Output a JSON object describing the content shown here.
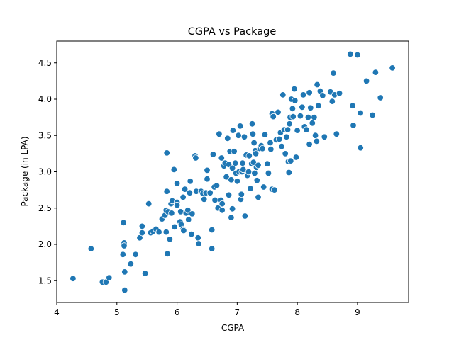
{
  "chart_data": {
    "type": "scatter",
    "title": "CGPA vs Package",
    "xlabel": "CGPA",
    "ylabel": "Package (in LPA)",
    "xlim": [
      4.0,
      9.85
    ],
    "ylim": [
      1.2,
      4.8
    ],
    "xticks": [
      4,
      5,
      6,
      7,
      8,
      9
    ],
    "yticks": [
      1.5,
      2.0,
      2.5,
      3.0,
      3.5,
      4.0,
      4.5
    ],
    "xtick_labels": [
      "4",
      "5",
      "6",
      "7",
      "8",
      "9"
    ],
    "ytick_labels": [
      "1.5",
      "2.0",
      "2.5",
      "3.0",
      "3.5",
      "4.0",
      "4.5"
    ],
    "grid": false,
    "marker_color": "#1f77b4",
    "marker_edge": "#ffffff",
    "points": [
      [
        4.27,
        1.53
      ],
      [
        4.57,
        1.94
      ],
      [
        4.76,
        1.48
      ],
      [
        4.82,
        1.48
      ],
      [
        4.87,
        1.54
      ],
      [
        5.1,
        1.86
      ],
      [
        5.11,
        2.3
      ],
      [
        5.12,
        2.02
      ],
      [
        5.12,
        1.98
      ],
      [
        5.13,
        1.62
      ],
      [
        5.13,
        1.37
      ],
      [
        5.23,
        1.73
      ],
      [
        5.31,
        1.86
      ],
      [
        5.38,
        2.09
      ],
      [
        5.42,
        2.25
      ],
      [
        5.42,
        2.16
      ],
      [
        5.47,
        1.6
      ],
      [
        5.53,
        2.56
      ],
      [
        5.56,
        2.16
      ],
      [
        5.6,
        2.18
      ],
      [
        5.65,
        2.21
      ],
      [
        5.7,
        2.17
      ],
      [
        5.75,
        2.35
      ],
      [
        5.8,
        2.4
      ],
      [
        5.82,
        2.47
      ],
      [
        5.83,
        2.73
      ],
      [
        5.82,
        2.17
      ],
      [
        5.85,
        2.45
      ],
      [
        5.84,
        1.87
      ],
      [
        5.83,
        3.26
      ],
      [
        5.88,
        2.07
      ],
      [
        5.9,
        2.56
      ],
      [
        5.91,
        2.43
      ],
      [
        5.92,
        2.6
      ],
      [
        5.95,
        3.03
      ],
      [
        5.96,
        2.24
      ],
      [
        6.0,
        2.58
      ],
      [
        6.0,
        2.54
      ],
      [
        6.0,
        2.84
      ],
      [
        6.05,
        2.31
      ],
      [
        6.06,
        2.45
      ],
      [
        6.07,
        2.27
      ],
      [
        6.1,
        2.21
      ],
      [
        6.1,
        2.65
      ],
      [
        6.11,
        2.19
      ],
      [
        6.13,
        2.76
      ],
      [
        6.15,
        2.43
      ],
      [
        6.18,
        2.47
      ],
      [
        6.19,
        2.34
      ],
      [
        6.22,
        2.87
      ],
      [
        6.21,
        2.71
      ],
      [
        6.24,
        2.14
      ],
      [
        6.25,
        2.42
      ],
      [
        6.3,
        3.22
      ],
      [
        6.31,
        3.19
      ],
      [
        6.32,
        2.73
      ],
      [
        6.35,
        2.09
      ],
      [
        6.36,
        2.01
      ],
      [
        6.4,
        2.73
      ],
      [
        6.43,
        2.7
      ],
      [
        6.45,
        2.62
      ],
      [
        6.48,
        2.71
      ],
      [
        6.5,
        3.02
      ],
      [
        6.5,
        2.9
      ],
      [
        6.55,
        2.71
      ],
      [
        6.58,
        2.2
      ],
      [
        6.58,
        1.94
      ],
      [
        6.6,
        3.24
      ],
      [
        6.62,
        2.79
      ],
      [
        6.63,
        2.61
      ],
      [
        6.66,
        2.81
      ],
      [
        6.68,
        2.5
      ],
      [
        6.7,
        3.52
      ],
      [
        6.73,
        2.61
      ],
      [
        6.74,
        3.19
      ],
      [
        6.75,
        2.56
      ],
      [
        6.75,
        2.47
      ],
      [
        6.78,
        3.08
      ],
      [
        6.8,
        3.12
      ],
      [
        6.82,
        2.93
      ],
      [
        6.84,
        3.46
      ],
      [
        6.86,
        3.1
      ],
      [
        6.86,
        2.68
      ],
      [
        6.88,
        3.28
      ],
      [
        6.9,
        2.89
      ],
      [
        6.9,
        2.37
      ],
      [
        6.92,
        3.05
      ],
      [
        6.92,
        2.49
      ],
      [
        6.93,
        3.57
      ],
      [
        6.95,
        3.28
      ],
      [
        6.97,
        3.12
      ],
      [
        6.98,
        2.98
      ],
      [
        7.0,
        2.87
      ],
      [
        7.02,
        3.5
      ],
      [
        7.03,
        3.0
      ],
      [
        7.05,
        3.63
      ],
      [
        7.06,
        2.62
      ],
      [
        7.07,
        2.69
      ],
      [
        7.08,
        3.0
      ],
      [
        7.09,
        3.12
      ],
      [
        7.1,
        3.03
      ],
      [
        7.12,
        3.48
      ],
      [
        7.13,
        2.39
      ],
      [
        7.15,
        3.23
      ],
      [
        7.17,
        2.95
      ],
      [
        7.19,
        3.0
      ],
      [
        7.2,
        3.22
      ],
      [
        7.22,
        2.77
      ],
      [
        7.24,
        3.11
      ],
      [
        7.25,
        3.66
      ],
      [
        7.26,
        3.52
      ],
      [
        7.27,
        3.13
      ],
      [
        7.28,
        3.4
      ],
      [
        7.29,
        2.98
      ],
      [
        7.3,
        3.29
      ],
      [
        7.31,
        3.25
      ],
      [
        7.32,
        3.06
      ],
      [
        7.33,
        2.88
      ],
      [
        7.35,
        3.09
      ],
      [
        7.35,
        2.65
      ],
      [
        7.38,
        3.32
      ],
      [
        7.4,
        3.36
      ],
      [
        7.42,
        3.32
      ],
      [
        7.44,
        2.79
      ],
      [
        7.46,
        3.51
      ],
      [
        7.5,
        3.11
      ],
      [
        7.52,
        2.98
      ],
      [
        7.55,
        3.4
      ],
      [
        7.56,
        3.31
      ],
      [
        7.58,
        3.8
      ],
      [
        7.58,
        2.76
      ],
      [
        7.6,
        3.76
      ],
      [
        7.62,
        2.75
      ],
      [
        7.65,
        3.44
      ],
      [
        7.68,
        3.82
      ],
      [
        7.7,
        3.45
      ],
      [
        7.72,
        3.54
      ],
      [
        7.74,
        3.35
      ],
      [
        7.76,
        4.06
      ],
      [
        7.78,
        3.58
      ],
      [
        7.8,
        3.25
      ],
      [
        7.82,
        3.48
      ],
      [
        7.84,
        3.58
      ],
      [
        7.85,
        3.14
      ],
      [
        7.86,
        2.99
      ],
      [
        7.87,
        3.66
      ],
      [
        7.88,
        3.75
      ],
      [
        7.89,
        3.15
      ],
      [
        7.9,
        4.0
      ],
      [
        7.92,
        3.87
      ],
      [
        7.93,
        3.76
      ],
      [
        7.95,
        4.14
      ],
      [
        7.96,
        3.98
      ],
      [
        7.98,
        3.2
      ],
      [
        8.0,
        3.57
      ],
      [
        8.05,
        3.77
      ],
      [
        8.08,
        3.89
      ],
      [
        8.1,
        4.06
      ],
      [
        8.12,
        3.62
      ],
      [
        8.15,
        3.58
      ],
      [
        8.18,
        3.75
      ],
      [
        8.2,
        4.09
      ],
      [
        8.2,
        3.38
      ],
      [
        8.22,
        3.88
      ],
      [
        8.25,
        3.67
      ],
      [
        8.28,
        3.75
      ],
      [
        8.3,
        3.5
      ],
      [
        8.32,
        3.42
      ],
      [
        8.33,
        4.2
      ],
      [
        8.35,
        3.91
      ],
      [
        8.38,
        4.11
      ],
      [
        8.42,
        4.05
      ],
      [
        8.45,
        3.48
      ],
      [
        8.55,
        4.1
      ],
      [
        8.58,
        3.97
      ],
      [
        8.6,
        4.36
      ],
      [
        8.62,
        4.06
      ],
      [
        8.65,
        3.52
      ],
      [
        8.7,
        4.08
      ],
      [
        8.88,
        4.62
      ],
      [
        8.92,
        3.91
      ],
      [
        8.93,
        3.64
      ],
      [
        9.0,
        4.61
      ],
      [
        9.05,
        3.81
      ],
      [
        9.05,
        3.33
      ],
      [
        9.15,
        4.25
      ],
      [
        9.25,
        3.78
      ],
      [
        9.3,
        4.37
      ],
      [
        9.38,
        4.02
      ],
      [
        9.58,
        4.43
      ]
    ]
  }
}
